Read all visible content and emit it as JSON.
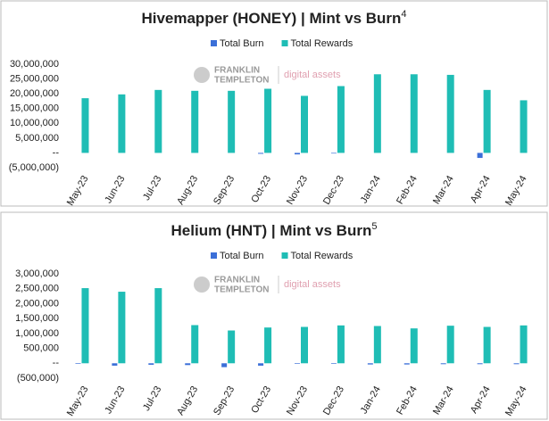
{
  "chart_data": [
    {
      "type": "bar",
      "title": "Hivemapper (HONEY) | Mint vs Burn",
      "title_note": "4",
      "watermark": {
        "brand_top": "FRANKLIN",
        "brand_bottom": "TEMPLETON",
        "sub": "digital assets"
      },
      "categories": [
        "May-23",
        "Jun-23",
        "Jul-23",
        "Aug-23",
        "Sep-23",
        "Oct-23",
        "Nov-23",
        "Dec-23",
        "Jan-24",
        "Feb-24",
        "Mar-24",
        "Apr-24",
        "May-24"
      ],
      "series": [
        {
          "name": "Total Burn",
          "color": "#3b6fd8",
          "values": [
            0,
            0,
            0,
            0,
            0,
            -300000,
            -500000,
            -200000,
            0,
            0,
            0,
            -1700000,
            0
          ]
        },
        {
          "name": "Total Rewards",
          "color": "#1fbdb5",
          "values": [
            18500000,
            19800000,
            21300000,
            21000000,
            21000000,
            21700000,
            19300000,
            22600000,
            26600000,
            26600000,
            26400000,
            21300000,
            17800000
          ]
        }
      ],
      "ylim": [
        -5000000,
        30000000
      ],
      "yticks": [
        {
          "value": -5000000,
          "label": "(5,000,000)"
        },
        {
          "value": 0,
          "label": "--"
        },
        {
          "value": 5000000,
          "label": "5,000,000"
        },
        {
          "value": 10000000,
          "label": "10,000,000"
        },
        {
          "value": 15000000,
          "label": "15,000,000"
        },
        {
          "value": 20000000,
          "label": "20,000,000"
        },
        {
          "value": 25000000,
          "label": "25,000,000"
        },
        {
          "value": 30000000,
          "label": "30,000,000"
        }
      ],
      "legend": "top"
    },
    {
      "type": "bar",
      "title": "Helium (HNT) | Mint vs Burn",
      "title_note": "5",
      "watermark": {
        "brand_top": "FRANKLIN",
        "brand_bottom": "TEMPLETON",
        "sub": "digital assets"
      },
      "categories": [
        "May-23",
        "Jun-23",
        "Jul-23",
        "Aug-23",
        "Sep-23",
        "Oct-23",
        "Nov-23",
        "Dec-23",
        "Jan-24",
        "Feb-24",
        "Mar-24",
        "Apr-24",
        "May-24"
      ],
      "series": [
        {
          "name": "Total Burn",
          "color": "#3b6fd8",
          "values": [
            -20000,
            -80000,
            -50000,
            -60000,
            -130000,
            -80000,
            -20000,
            -20000,
            -40000,
            -40000,
            -30000,
            -30000,
            -30000
          ]
        },
        {
          "name": "Total Rewards",
          "color": "#1fbdb5",
          "values": [
            2520000,
            2400000,
            2520000,
            1280000,
            1100000,
            1200000,
            1220000,
            1270000,
            1250000,
            1170000,
            1260000,
            1220000,
            1270000
          ]
        }
      ],
      "ylim": [
        -500000,
        3000000
      ],
      "yticks": [
        {
          "value": -500000,
          "label": "(500,000)"
        },
        {
          "value": 0,
          "label": "--"
        },
        {
          "value": 500000,
          "label": "500,000"
        },
        {
          "value": 1000000,
          "label": "1,000,000"
        },
        {
          "value": 1500000,
          "label": "1,500,000"
        },
        {
          "value": 2000000,
          "label": "2,000,000"
        },
        {
          "value": 2500000,
          "label": "2,500,000"
        },
        {
          "value": 3000000,
          "label": "3,000,000"
        }
      ],
      "legend": "top"
    }
  ]
}
